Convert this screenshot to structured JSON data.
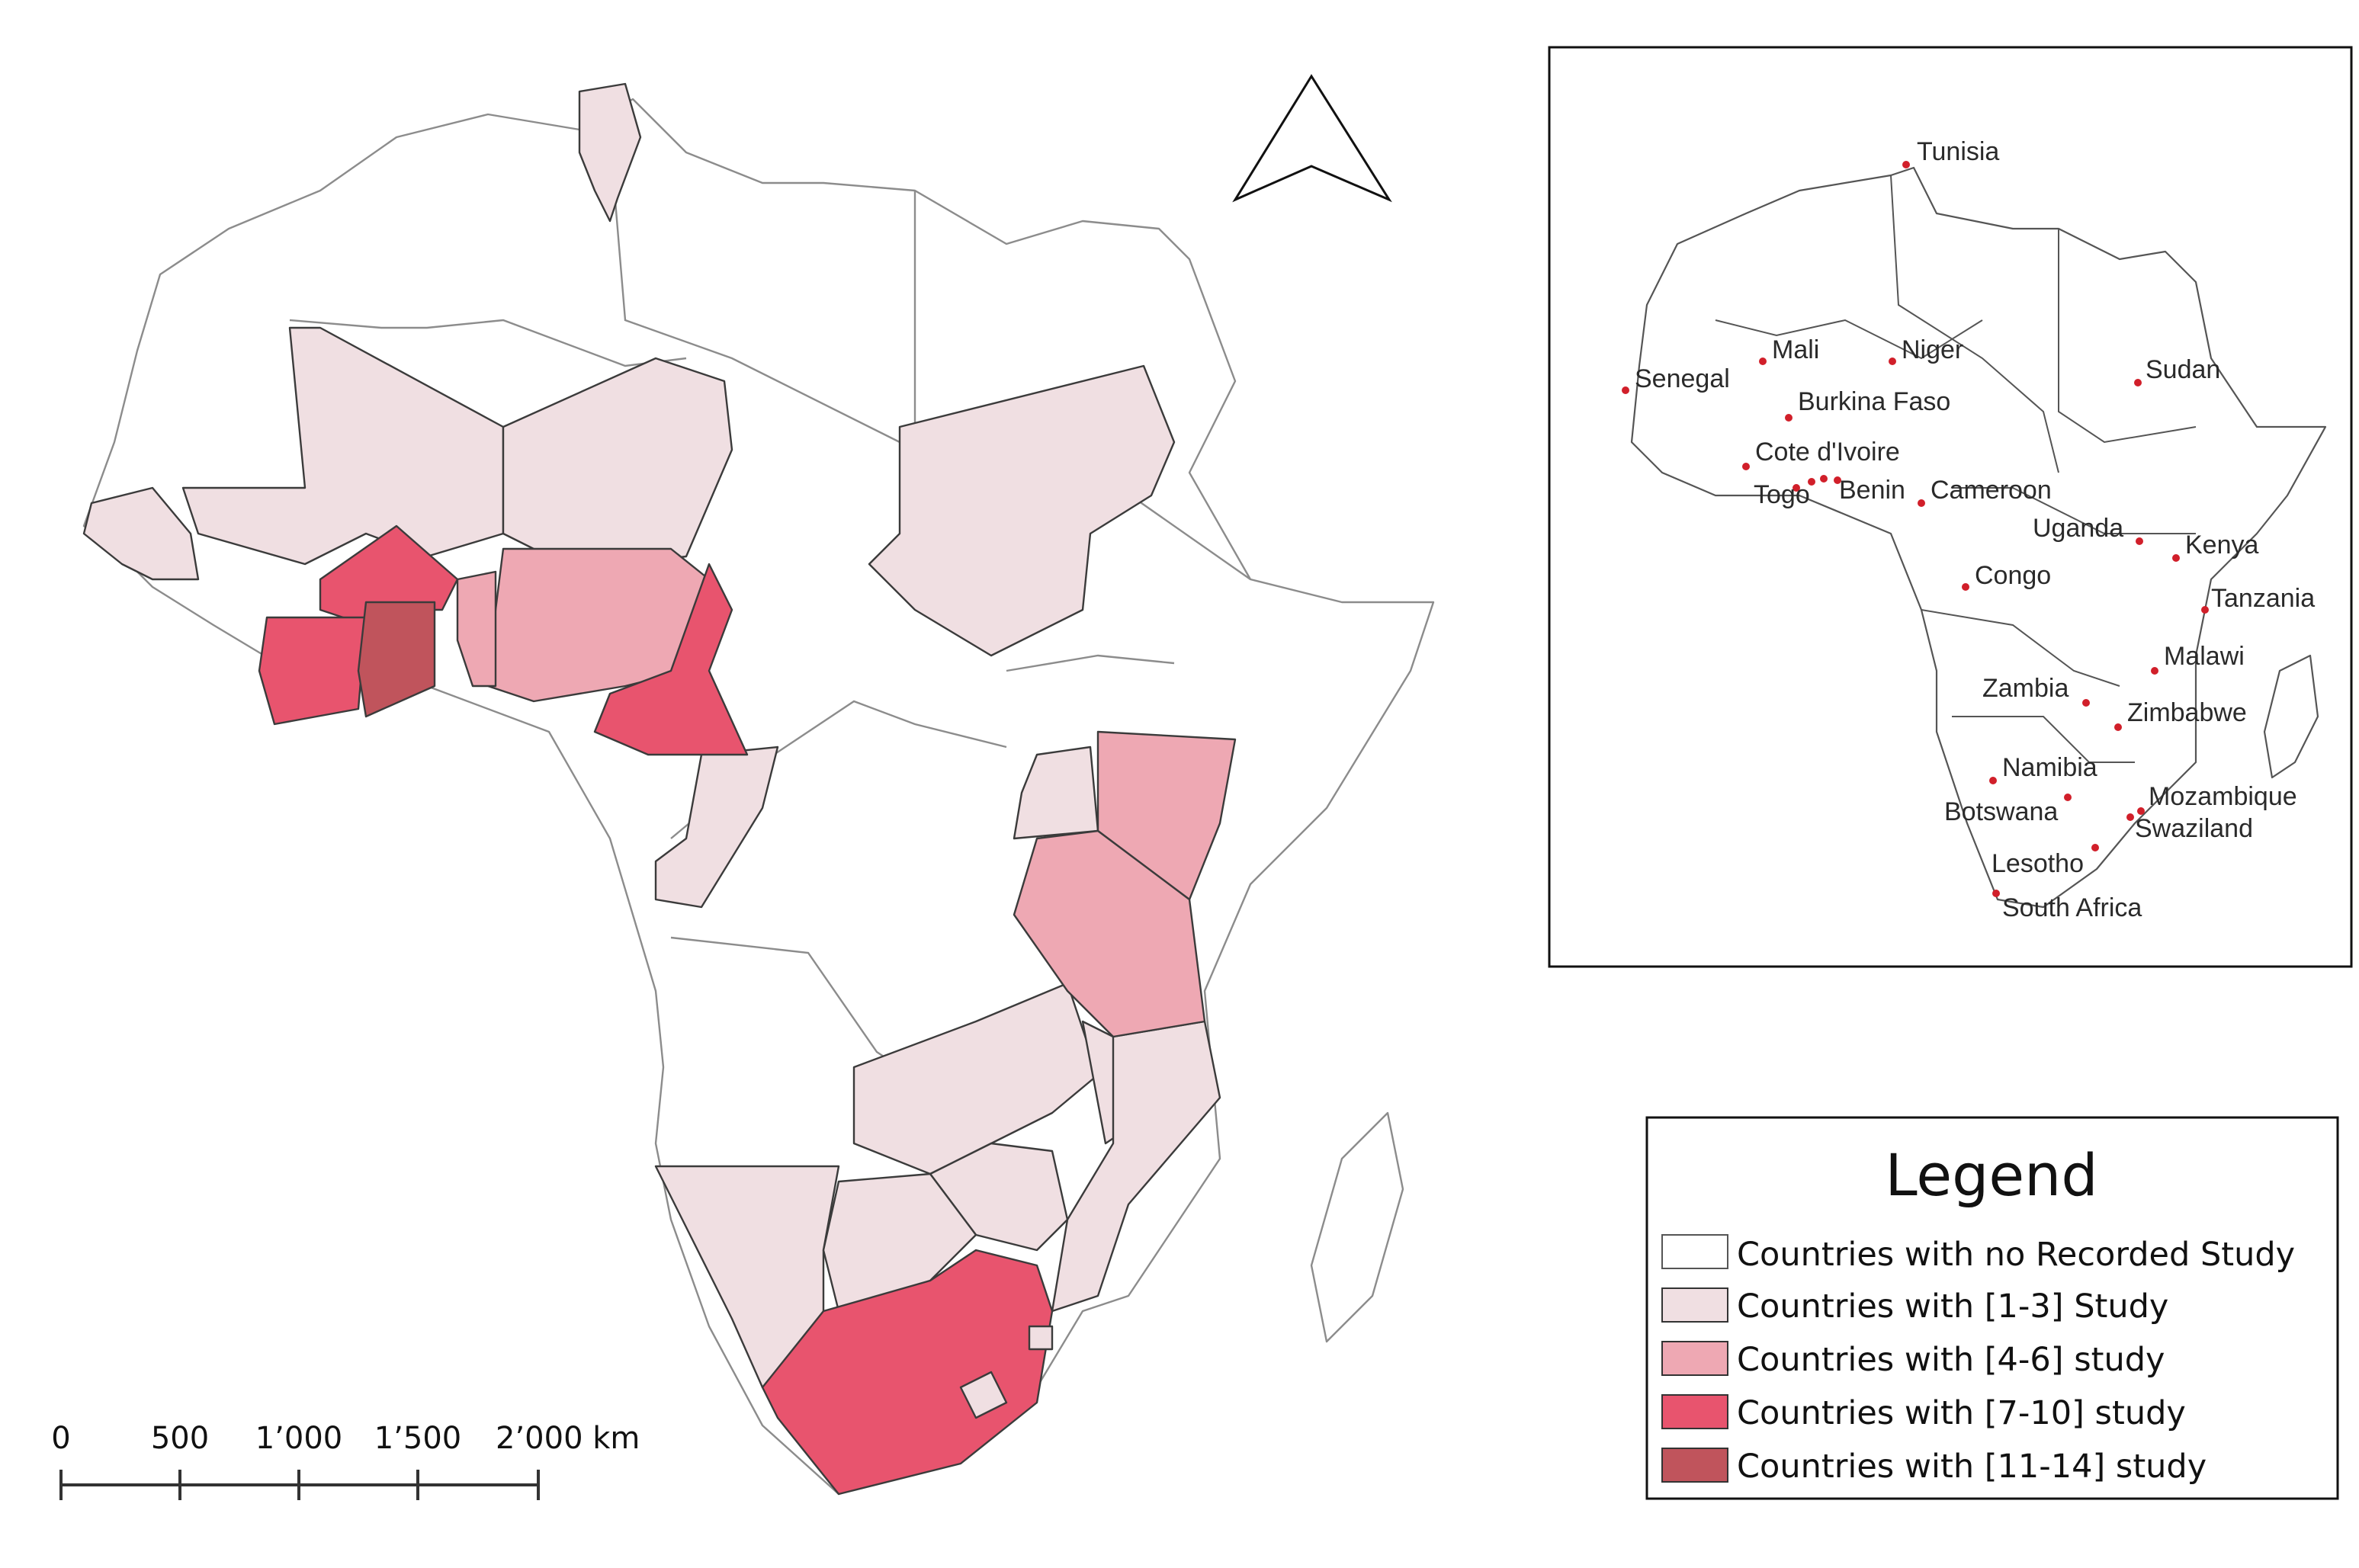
{
  "legend": {
    "title": "Legend",
    "items": [
      {
        "label": "Countries with no Recorded Study",
        "color": "#ffffff"
      },
      {
        "label": "Countries with [1-3] Study",
        "color": "#f0dfe2"
      },
      {
        "label": "Countries with [4-6] study",
        "color": "#eea8b3"
      },
      {
        "label": "Countries with [7-10] study",
        "color": "#e8546e"
      },
      {
        "label": "Countries with [11-14] study",
        "color": "#c0545c"
      }
    ]
  },
  "scale_bar": {
    "labels": [
      "0",
      "500",
      "1’000",
      "1’500",
      "2’000 km"
    ]
  },
  "north_arrow": {
    "icon": "north-arrow-icon"
  },
  "inset": {
    "labels": [
      "Tunisia",
      "Mali",
      "Niger",
      "Senegal",
      "Sudan",
      "Burkina Faso",
      "Cote d'Ivoire",
      "Togo",
      "Benin",
      "Cameroon",
      "Uganda",
      "Kenya",
      "Congo",
      "Tanzania",
      "Malawi",
      "Zambia",
      "Zimbabwe",
      "Namibia",
      "Mozambique",
      "Botswana",
      "Swaziland",
      "Lesotho",
      "South Africa"
    ]
  }
}
